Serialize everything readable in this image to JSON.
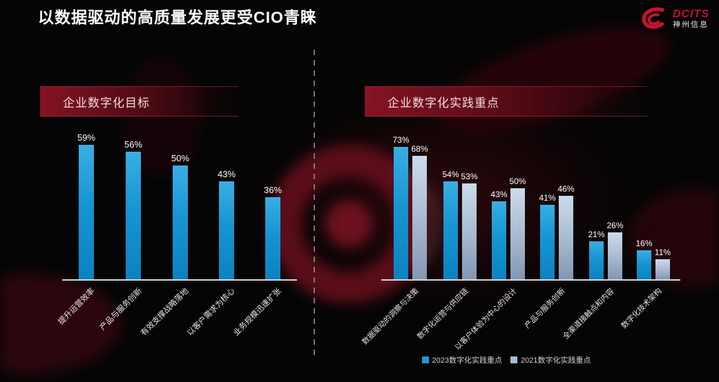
{
  "slide": {
    "title": "以数据驱动的高质量发展更受CIO青睐",
    "logo": {
      "brand": "DCITS",
      "subbrand": "神州信息"
    }
  },
  "colors": {
    "bar_blue": "#1B9AD6",
    "bar_gray_blue": "#A9BCD2",
    "header_red": "#8D1426",
    "brand_red": "#C41230",
    "background": "#050505",
    "axis": "#D6D6D6"
  },
  "chart_data": [
    {
      "type": "bar",
      "title": "企业数字化目标",
      "categories": [
        "提升运营效率",
        "产品与服务创新",
        "有效支撑战略落地",
        "以客户需求为核心",
        "业务规模迅速扩张"
      ],
      "values": [
        59,
        56,
        50,
        43,
        36
      ],
      "unit": "%",
      "ylim": [
        0,
        65
      ],
      "data_labels": true,
      "grid": false,
      "legend_position": "none",
      "bar_color": "#1B9AD6"
    },
    {
      "type": "bar",
      "title": "企业数字化实践重点",
      "categories": [
        "数据驱动的洞察与决策",
        "数字化运营与供应链",
        "以客户体验为中心的设计",
        "产品与服务创新",
        "全渠道接触点和内容",
        "数字化技术架构"
      ],
      "series": [
        {
          "name": "2023数字化实践重点",
          "color": "#1B9AD6",
          "values": [
            73,
            54,
            43,
            41,
            21,
            16
          ]
        },
        {
          "name": "2021数字化实践重点",
          "color": "#A9BCD2",
          "values": [
            68,
            53,
            50,
            46,
            26,
            11
          ]
        }
      ],
      "unit": "%",
      "ylim": [
        0,
        80
      ],
      "data_labels": true,
      "grid": false,
      "legend_position": "bottom"
    }
  ]
}
